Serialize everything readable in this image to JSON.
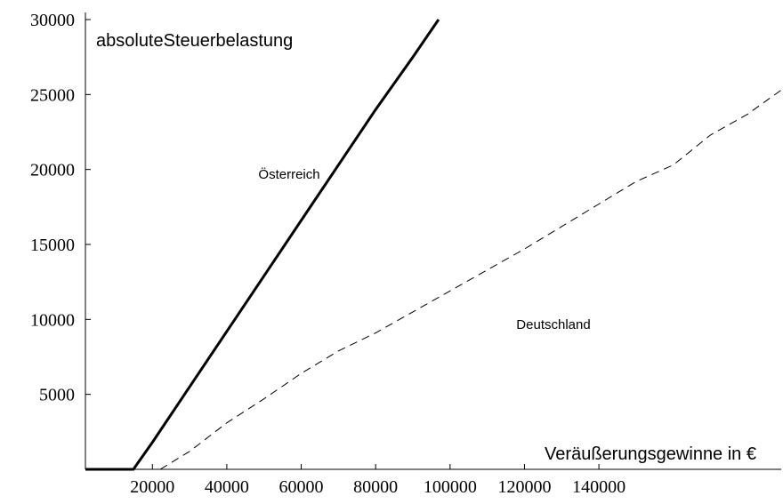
{
  "chart_data": {
    "type": "line",
    "ylabel": "absoluteSteuerbelastung",
    "xlabel": "Veräußerungsgewinne in €",
    "series": [
      {
        "name": "Österreich",
        "color": "#000000",
        "dashed": false,
        "x": [
          2000,
          14900,
          20000,
          30000,
          40000,
          50000,
          60000,
          70000,
          80000,
          90000,
          96900
        ],
        "values": [
          0,
          0,
          1800,
          5500,
          9200,
          12900,
          16600,
          20300,
          24000,
          27500,
          30000
        ]
      },
      {
        "name": "Deutschland",
        "color": "#000000",
        "dashed": true,
        "x": [
          22100,
          30000,
          40000,
          50000,
          60000,
          70000,
          80000,
          90000,
          100000,
          110000,
          120000,
          130000,
          140000,
          150000,
          160000,
          170000,
          180000,
          189000
        ],
        "values": [
          0,
          1200,
          3100,
          4700,
          6400,
          7900,
          9100,
          10500,
          11900,
          13300,
          14700,
          16200,
          17700,
          19200,
          20300,
          22300,
          23700,
          25300
        ]
      }
    ],
    "xlim": [
      2000,
      189000
    ],
    "ylim": [
      0,
      30000
    ],
    "xticks": [
      20000,
      40000,
      60000,
      80000,
      100000,
      120000,
      140000
    ],
    "yticks": [
      5000,
      10000,
      15000,
      20000,
      25000,
      30000
    ]
  }
}
